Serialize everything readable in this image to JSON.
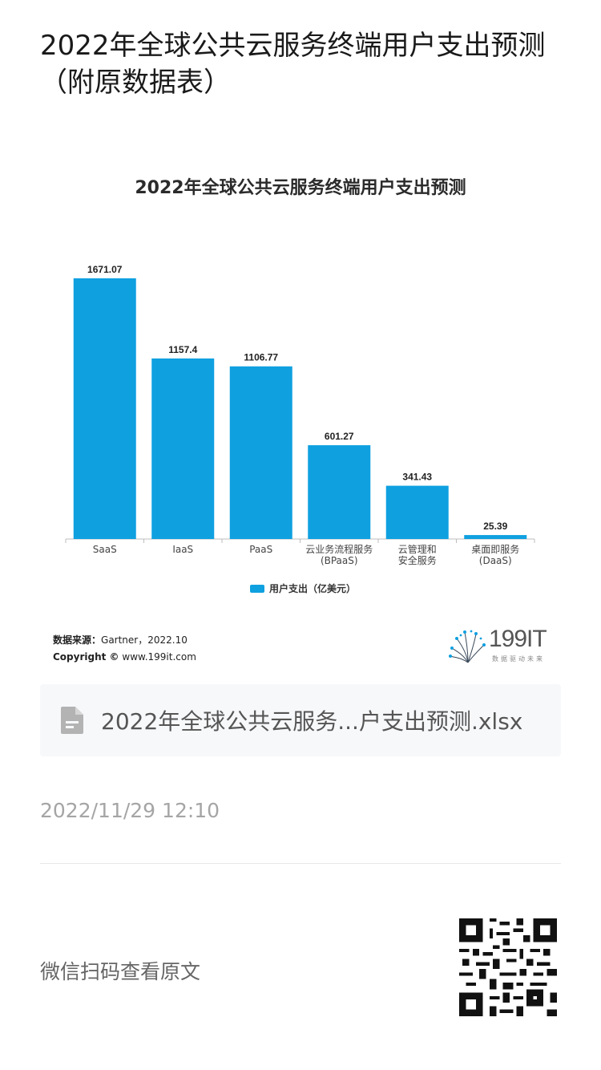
{
  "article": {
    "title": "2022年全球公共云服务终端用户支出预测（附原数据表）"
  },
  "chart_data": {
    "type": "bar",
    "title": "2022年全球公共云服务终端用户支出预测",
    "categories": [
      [
        "SaaS"
      ],
      [
        "IaaS"
      ],
      [
        "PaaS"
      ],
      [
        "云业务流程服务",
        "(BPaaS)"
      ],
      [
        "云管理和",
        "安全服务"
      ],
      [
        "桌面即服务",
        "(DaaS)"
      ]
    ],
    "series": [
      {
        "name": "用户支出（亿美元）",
        "values": [
          1671.07,
          1157.4,
          1106.77,
          601.27,
          341.43,
          25.39
        ],
        "labels": [
          "1671.07",
          "1157.4",
          "1106.77",
          "601.27",
          "341.43",
          "25.39"
        ]
      }
    ],
    "ylim": [
      0,
      1671.07
    ],
    "grid": false,
    "legend_position": "bottom",
    "color": "#0fa0e0"
  },
  "source": {
    "label": "数据来源：",
    "value": "Gartner，2022.10",
    "copyright_label": "Copyright ©",
    "copyright_value": "www.199it.com"
  },
  "logo": {
    "text": "199IT",
    "sub": "数据驱动未来",
    "icon": "dandelion-logo-icon"
  },
  "attachment": {
    "icon": "file-document-icon",
    "name": "2022年全球公共云服务...户支出预测.xlsx"
  },
  "timestamp": "2022/11/29 12:10",
  "footer": {
    "scan_text": "微信扫码查看原文",
    "qr_icon": "qr-code-icon"
  }
}
